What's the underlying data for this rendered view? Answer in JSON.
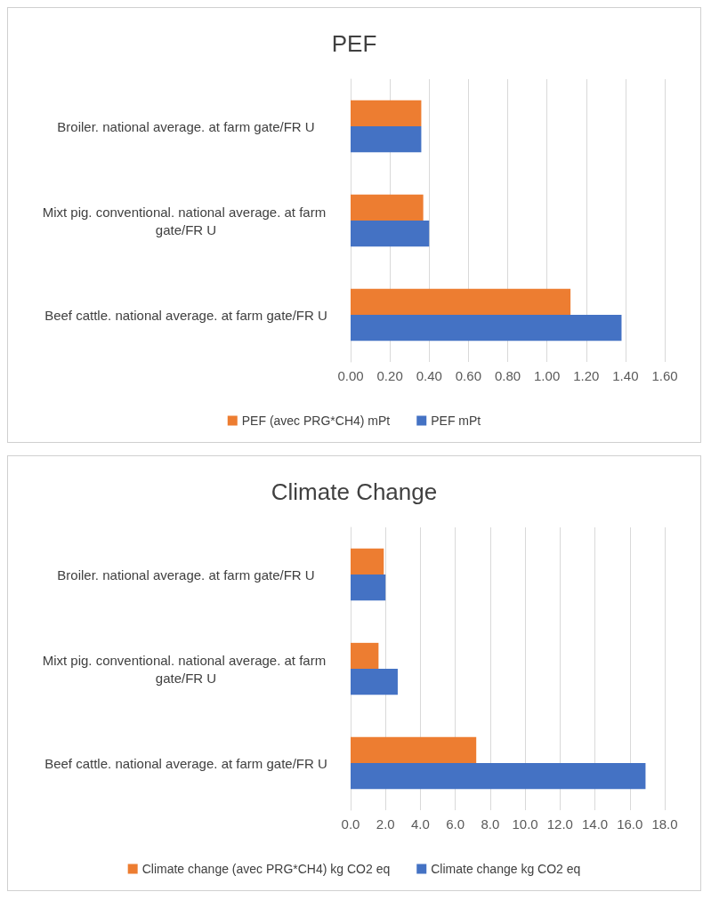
{
  "chart_data": [
    {
      "type": "bar",
      "orientation": "horizontal",
      "title": "PEF",
      "categories": [
        "Broiler. national average. at farm gate/FR U",
        "Mixt pig. conventional. national average. at farm gate/FR U",
        "Beef cattle. national average. at farm gate/FR U"
      ],
      "series": [
        {
          "name": "PEF (avec PRG*CH4) mPt",
          "color": "#ed7d31",
          "values": [
            0.36,
            0.37,
            1.12
          ]
        },
        {
          "name": "PEF mPt",
          "color": "#4472c4",
          "values": [
            0.36,
            0.4,
            1.38
          ]
        }
      ],
      "xlim": [
        0,
        1.6
      ],
      "xticks": [
        {
          "value": 0,
          "label": "0.00"
        },
        {
          "value": 0.2,
          "label": "0.20"
        },
        {
          "value": 0.4,
          "label": "0.40"
        },
        {
          "value": 0.6,
          "label": "0.60"
        },
        {
          "value": 0.8,
          "label": "0.80"
        },
        {
          "value": 1,
          "label": "1.00"
        },
        {
          "value": 1.2,
          "label": "1.20"
        },
        {
          "value": 1.4,
          "label": "1.40"
        },
        {
          "value": 1.6,
          "label": "1.60"
        }
      ],
      "grid": "x",
      "legend": "bottom"
    },
    {
      "type": "bar",
      "orientation": "horizontal",
      "title": "Climate Change",
      "categories": [
        "Broiler. national average. at farm gate/FR U",
        "Mixt pig. conventional. national average. at farm gate/FR U",
        "Beef cattle. national average. at farm gate/FR U"
      ],
      "series": [
        {
          "name": "Climate change (avec PRG*CH4) kg CO2 eq",
          "color": "#ed7d31",
          "values": [
            1.9,
            1.6,
            7.2
          ]
        },
        {
          "name": "Climate change kg CO2 eq",
          "color": "#4472c4",
          "values": [
            2.0,
            2.7,
            16.9
          ]
        }
      ],
      "xlim": [
        0,
        18
      ],
      "xticks": [
        {
          "value": 0,
          "label": "0.0"
        },
        {
          "value": 2,
          "label": "2.0"
        },
        {
          "value": 4,
          "label": "4.0"
        },
        {
          "value": 6,
          "label": "6.0"
        },
        {
          "value": 8,
          "label": "8.0"
        },
        {
          "value": 10,
          "label": "10.0"
        },
        {
          "value": 12,
          "label": "12.0"
        },
        {
          "value": 14,
          "label": "14.0"
        },
        {
          "value": 16,
          "label": "16.0"
        },
        {
          "value": 18,
          "label": "18.0"
        }
      ],
      "grid": "x",
      "legend": "bottom"
    }
  ]
}
